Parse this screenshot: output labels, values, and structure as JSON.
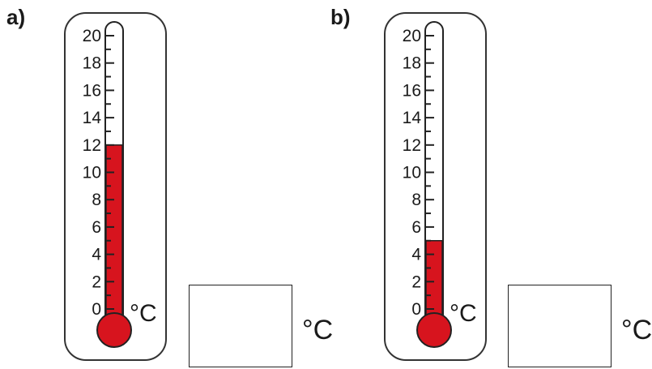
{
  "scale": {
    "min": 0,
    "max": 20,
    "labels": [
      "20",
      "18",
      "16",
      "14",
      "12",
      "10",
      "8",
      "6",
      "4",
      "2",
      "0"
    ]
  },
  "unit": "°C",
  "accent_color": "#d7141e",
  "panels": [
    {
      "label": "a)",
      "reading": 12
    },
    {
      "label": "b)",
      "reading": 5
    }
  ]
}
